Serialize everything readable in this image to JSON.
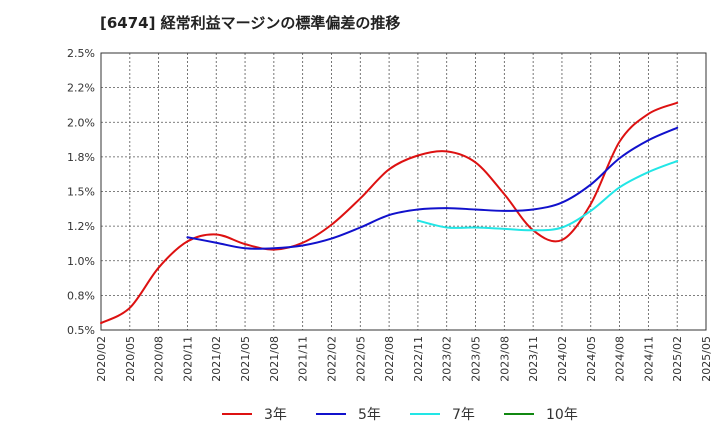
{
  "chart_data": {
    "type": "line",
    "title": "[6474]  経常利益マージンの標準偏差の推移",
    "xlabel": "",
    "ylabel": "",
    "x": [
      "2020/02",
      "2020/05",
      "2020/08",
      "2020/11",
      "2021/02",
      "2021/05",
      "2021/08",
      "2021/11",
      "2022/02",
      "2022/05",
      "2022/08",
      "2022/11",
      "2023/02",
      "2023/05",
      "2023/08",
      "2023/11",
      "2024/02",
      "2024/05",
      "2024/08",
      "2024/11",
      "2025/02",
      "2025/05"
    ],
    "ylim": [
      0.5,
      2.5
    ],
    "yticks": [
      "0.5%",
      "0.8%",
      "1.0%",
      "1.2%",
      "1.5%",
      "1.8%",
      "2.0%",
      "2.2%",
      "2.5%"
    ],
    "grid": true,
    "legend_position": "bottom",
    "series": [
      {
        "name": "3年",
        "color": "#dd1111",
        "values": [
          0.55,
          0.66,
          0.95,
          1.14,
          1.19,
          1.12,
          1.08,
          1.13,
          1.26,
          1.45,
          1.66,
          1.76,
          1.79,
          1.71,
          1.48,
          1.22,
          1.15,
          1.41,
          1.86,
          2.06,
          2.14,
          null
        ]
      },
      {
        "name": "5年",
        "color": "#1111cc",
        "values": [
          null,
          null,
          null,
          1.17,
          1.13,
          1.09,
          1.09,
          1.11,
          1.16,
          1.24,
          1.33,
          1.37,
          1.38,
          1.37,
          1.36,
          1.37,
          1.42,
          1.55,
          1.74,
          1.87,
          1.96,
          null
        ]
      },
      {
        "name": "7年",
        "color": "#22e6e6",
        "values": [
          null,
          null,
          null,
          null,
          null,
          null,
          null,
          null,
          null,
          null,
          null,
          1.29,
          1.24,
          1.24,
          1.23,
          1.22,
          1.24,
          1.36,
          1.53,
          1.64,
          1.72,
          null
        ]
      },
      {
        "name": "10年",
        "color": "#118811",
        "values": [
          null,
          null,
          null,
          null,
          null,
          null,
          null,
          null,
          null,
          null,
          null,
          null,
          null,
          null,
          null,
          null,
          null,
          null,
          null,
          null,
          null,
          null
        ]
      }
    ]
  }
}
